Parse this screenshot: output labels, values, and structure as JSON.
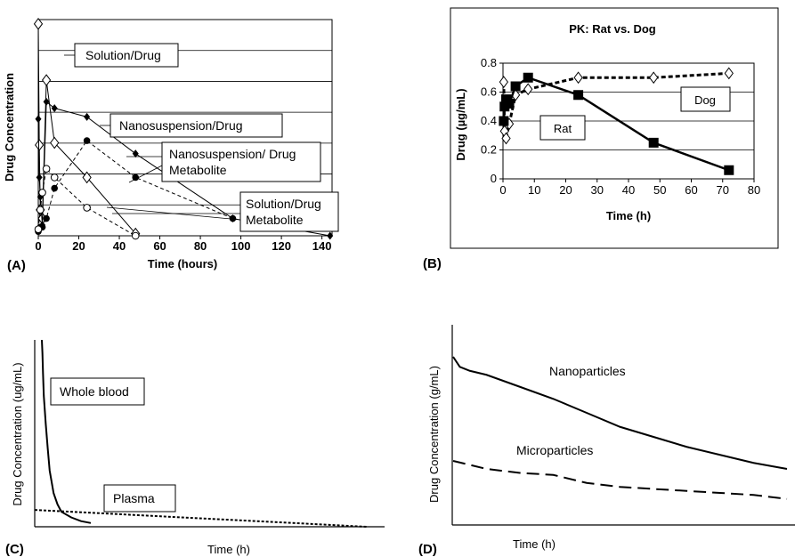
{
  "chart_data": [
    {
      "panel": "(A)",
      "type": "line",
      "title": "",
      "xlabel": "Time (hours)",
      "ylabel": "Drug Concentration",
      "xlim": [
        0,
        145
      ],
      "xticks": [
        "0",
        "20",
        "40",
        "60",
        "80",
        "100",
        "120",
        "140"
      ],
      "grid": true,
      "annotations": [
        "Solution/Drug",
        "Nanosuspension/Drug",
        "Nanosuspension/ Drug",
        "Metabolite",
        "Solution/Drug",
        "Metabolite"
      ],
      "series": [
        {
          "name": "Solution/Drug",
          "marker": "open-diamond",
          "dash": false,
          "x": [
            0,
            0.5,
            1,
            2,
            4,
            8,
            24,
            48
          ],
          "y": [
            0.98,
            0.42,
            0.12,
            0.08,
            0.72,
            0.43,
            0.27,
            0.01
          ]
        },
        {
          "name": "Nanosuspension/Drug",
          "marker": "filled-diamond",
          "dash": false,
          "x": [
            0,
            0.5,
            1,
            2,
            4,
            8,
            24,
            48,
            96,
            144
          ],
          "y": [
            0.54,
            0.27,
            0.18,
            0.05,
            0.62,
            0.59,
            0.55,
            0.38,
            0.08,
            0.0
          ]
        },
        {
          "name": "Nanosuspension/ Drug Metabolite",
          "marker": "filled-circle",
          "dash": true,
          "x": [
            0,
            1,
            2,
            4,
            8,
            24,
            48,
            96
          ],
          "y": [
            0.02,
            0.04,
            0.04,
            0.08,
            0.22,
            0.44,
            0.27,
            0.08
          ]
        },
        {
          "name": "Solution/Drug Metabolite",
          "marker": "open-circle",
          "dash": true,
          "x": [
            0,
            1,
            2,
            4,
            8,
            24,
            48
          ],
          "y": [
            0.03,
            0.12,
            0.2,
            0.31,
            0.27,
            0.13,
            0.0
          ]
        }
      ]
    },
    {
      "panel": "(B)",
      "type": "line",
      "title": "PK: Rat vs. Dog",
      "xlabel": "Time (h)",
      "ylabel": "Drug (µg/mL)",
      "xlim": [
        0,
        80
      ],
      "ylim": [
        0,
        0.8
      ],
      "xticks": [
        "0",
        "10",
        "20",
        "30",
        "40",
        "50",
        "60",
        "70",
        "80"
      ],
      "yticks": [
        "0",
        "0.2",
        "0.4",
        "0.6",
        "0.8"
      ],
      "grid": true,
      "series": [
        {
          "name": "Rat",
          "marker": "filled-square",
          "dash": false,
          "x": [
            0.25,
            0.5,
            1,
            2,
            4,
            8,
            24,
            48,
            72
          ],
          "y": [
            0.4,
            0.5,
            0.55,
            0.52,
            0.64,
            0.7,
            0.58,
            0.25,
            0.06
          ]
        },
        {
          "name": "Dog",
          "marker": "open-diamond",
          "dash": true,
          "x": [
            0.25,
            0.5,
            1,
            2,
            4,
            8,
            24,
            48,
            72
          ],
          "y": [
            0.67,
            0.33,
            0.28,
            0.38,
            0.58,
            0.62,
            0.7,
            0.7,
            0.73
          ]
        }
      ]
    },
    {
      "panel": "(C)",
      "type": "line",
      "title": "",
      "xlabel": "Time (h)",
      "ylabel": "Drug Concentration (ug/mL)",
      "series": [
        {
          "name": "Whole blood",
          "dash": false,
          "x": [
            0,
            0.3,
            0.6,
            1,
            2,
            3,
            4,
            6,
            8,
            10,
            15,
            20,
            25
          ],
          "y": [
            1.0,
            0.93,
            0.82,
            0.7,
            0.55,
            0.42,
            0.3,
            0.18,
            0.12,
            0.08,
            0.05,
            0.03,
            0.02
          ]
        },
        {
          "name": "Plasma",
          "dash": true,
          "x": [
            0,
            100
          ],
          "y": [
            0.09,
            0.0
          ]
        }
      ]
    },
    {
      "panel": "(D)",
      "type": "line",
      "title": "",
      "xlabel": "Time (h)",
      "ylabel": "Drug Concentration (g/mL)",
      "series": [
        {
          "name": "Nanoparticles",
          "dash": false,
          "x": [
            0,
            2,
            5,
            10,
            20,
            30,
            40,
            50,
            60,
            70,
            80,
            90,
            100
          ],
          "y": [
            0.84,
            0.79,
            0.77,
            0.75,
            0.69,
            0.63,
            0.56,
            0.49,
            0.44,
            0.39,
            0.35,
            0.31,
            0.28
          ]
        },
        {
          "name": "Microparticles",
          "dash": true,
          "x": [
            0,
            10,
            20,
            30,
            40,
            50,
            60,
            70,
            80,
            90,
            100
          ],
          "y": [
            0.32,
            0.28,
            0.26,
            0.25,
            0.21,
            0.19,
            0.18,
            0.17,
            0.16,
            0.15,
            0.13
          ]
        }
      ]
    }
  ]
}
